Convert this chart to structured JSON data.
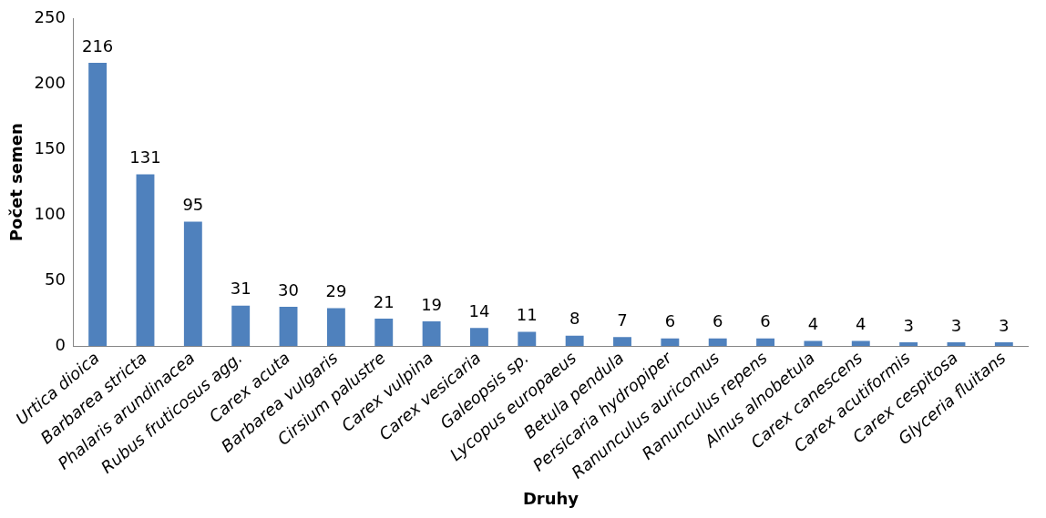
{
  "chart_data": {
    "type": "bar",
    "xlabel": "Druhy",
    "ylabel": "Počet semen",
    "categories": [
      "Urtica dioica",
      "Barbarea stricta",
      "Phalaris arundinacea",
      "Rubus fruticosus agg.",
      "Carex acuta",
      "Barbarea vulgaris",
      "Cirsium palustre",
      "Carex vulpina",
      "Carex vesicaria",
      "Galeopsis sp.",
      "Lycopus europaeus",
      "Betula pendula",
      "Persicaria hydropiper",
      "Ranunculus auricomus",
      "Ranunculus repens",
      "Alnus alnobetula",
      "Carex canescens",
      "Carex acutiformis",
      "Carex cespitosa",
      "Glyceria fluitans"
    ],
    "values": [
      216,
      131,
      95,
      31,
      30,
      29,
      21,
      19,
      14,
      11,
      8,
      7,
      6,
      6,
      6,
      4,
      4,
      3,
      3,
      3
    ],
    "color": "#4f81bd",
    "ylim": [
      0,
      250
    ],
    "yticks": [
      0,
      50,
      100,
      150,
      200,
      250
    ],
    "grid": false,
    "legend": false,
    "data_labels": true
  }
}
